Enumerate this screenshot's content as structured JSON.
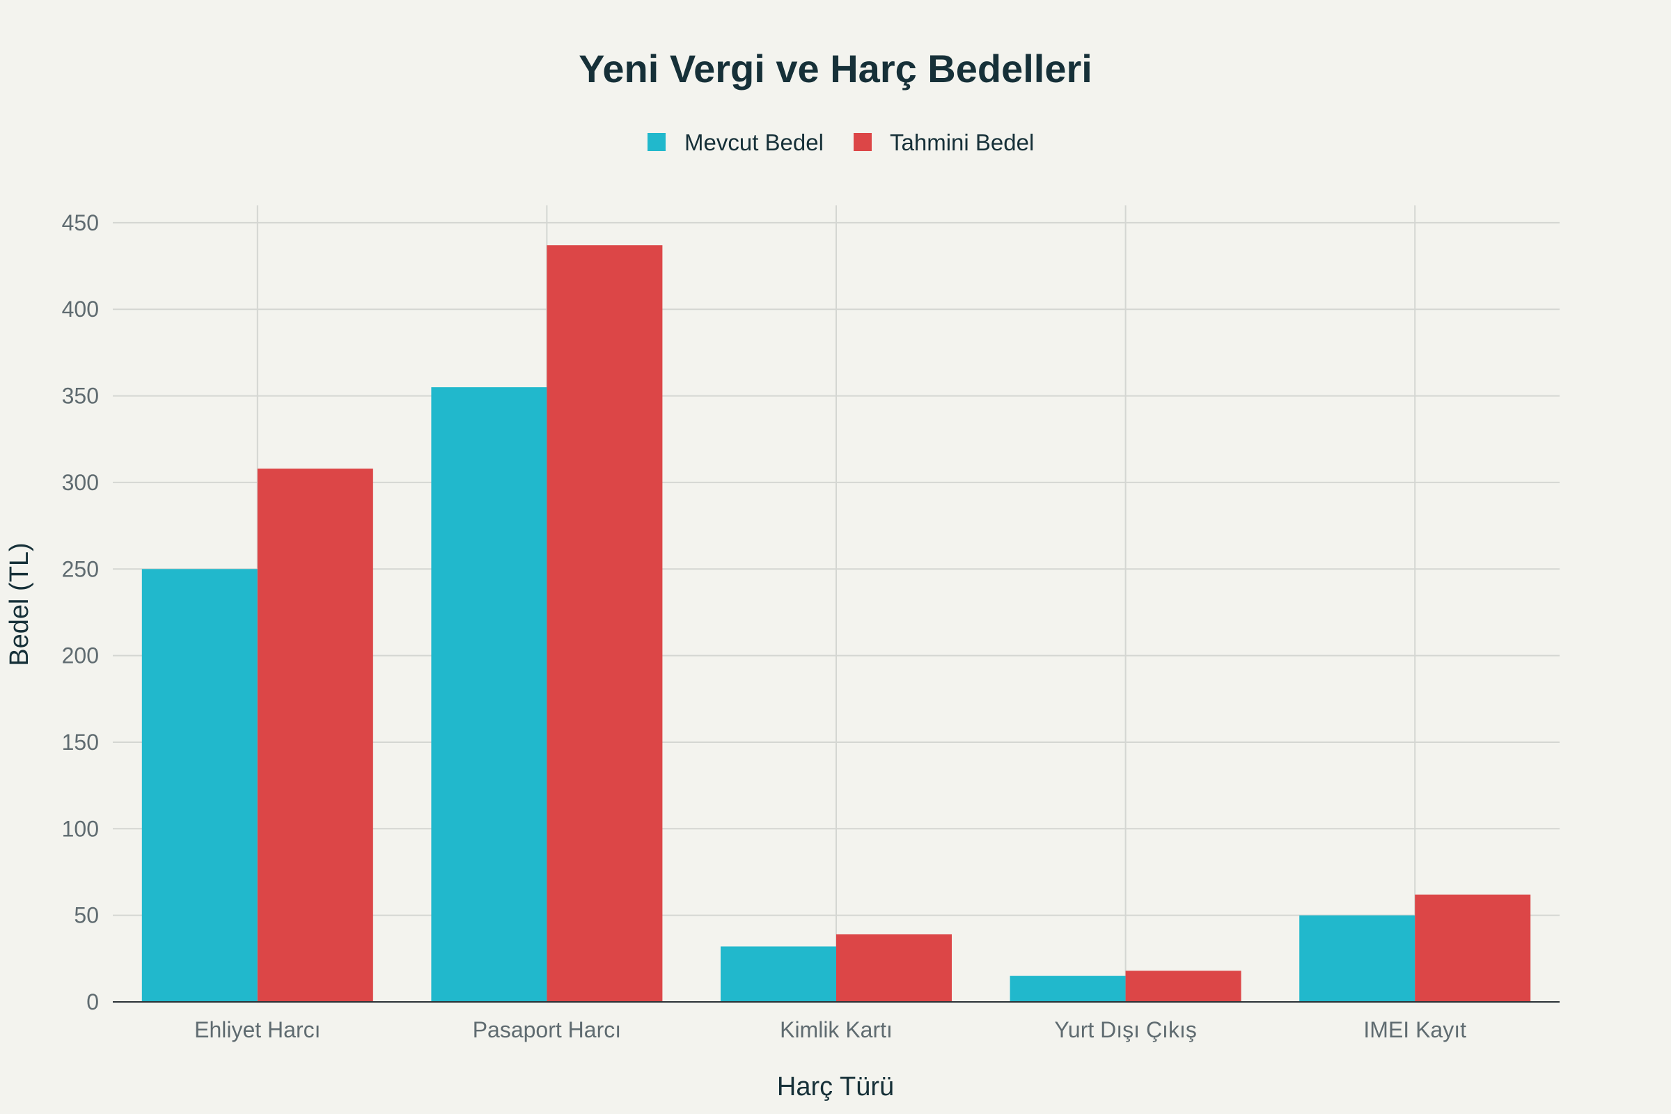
{
  "chart_data": {
    "type": "bar",
    "title": "Yeni Vergi ve Harç Bedelleri",
    "xlabel": "Harç Türü",
    "ylabel": "Bedel (TL)",
    "categories": [
      "Ehliyet Harcı",
      "Pasaport Harcı",
      "Kimlik Kartı",
      "Yurt Dışı Çıkış",
      "IMEI Kayıt"
    ],
    "series": [
      {
        "name": "Mevcut Bedel",
        "color": "#21b8cc",
        "values": [
          250,
          355,
          32,
          15,
          50
        ]
      },
      {
        "name": "Tahmini Bedel",
        "color": "#dc4647",
        "values": [
          308,
          437,
          39,
          18,
          62
        ]
      }
    ],
    "ylim": [
      0,
      460
    ],
    "yticks": [
      0,
      50,
      100,
      150,
      200,
      250,
      300,
      350,
      400,
      450
    ],
    "grid": true,
    "legend_position": "top-center"
  }
}
